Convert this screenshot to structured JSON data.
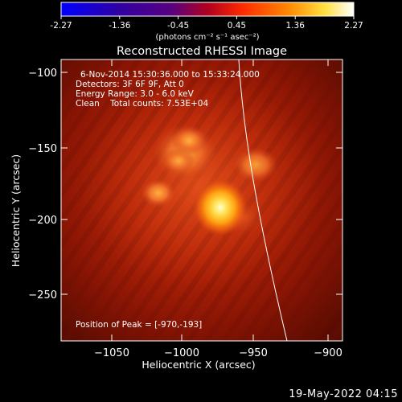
{
  "colorbar": {
    "ticks": [
      "-2.27",
      "-1.36",
      "-0.45",
      "0.45",
      "1.36",
      "2.27"
    ],
    "unit_label": "(photons cm⁻² s⁻¹ asec⁻²)"
  },
  "title": "Reconstructed RHESSI Image",
  "info": {
    "line1": "6-Nov-2014 15:30:36.000 to 15:33:24.000",
    "line2": "Detectors: 3F 6F 9F, Att 0",
    "line3": "Energy Range: 3.0 - 6.0 keV",
    "line4": "Clean    Total counts: 7.53E+04"
  },
  "peak_text": "Position of Peak = [-970,-193]",
  "axes": {
    "xlabel": "Heliocentric X (arcsec)",
    "ylabel": "Heliocentric Y (arcsec)",
    "xticks": [
      "−1050",
      "−1000",
      "−950",
      "−900"
    ],
    "yticks": [
      "−100",
      "−150",
      "−200",
      "−250"
    ]
  },
  "timestamp": "19-May-2022 04:15"
}
